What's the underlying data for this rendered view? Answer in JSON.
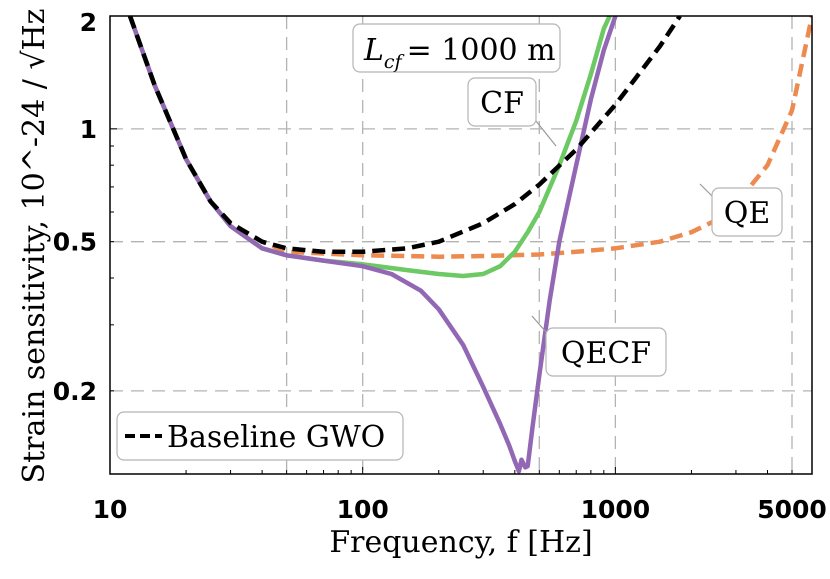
{
  "chart_data": {
    "type": "line",
    "xscale": "log",
    "yscale": "log",
    "xlim": [
      10,
      6000
    ],
    "ylim": [
      0.12,
      2
    ],
    "xlabel": "Frequency, f [Hz]",
    "ylabel": "Strain sensitivity, 10^-24 / √Hz",
    "x_ticks": [
      {
        "value": 10,
        "label": "10"
      },
      {
        "value": 100,
        "label": "100"
      },
      {
        "value": 1000,
        "label": "1000"
      },
      {
        "value": 5000,
        "label": "5000"
      }
    ],
    "y_ticks": [
      {
        "value": 0.2,
        "label": "0.2"
      },
      {
        "value": 0.5,
        "label": "0.5"
      },
      {
        "value": 1,
        "label": "1"
      },
      {
        "value": 2,
        "label": "2"
      }
    ],
    "x_grid": [
      50,
      100,
      500,
      1000,
      5000
    ],
    "y_grid": [
      0.2,
      0.5,
      1
    ],
    "grid": true,
    "legend": {
      "label": "Baseline GWO",
      "placement": "lower-left"
    },
    "title_annotation": {
      "prefix": "L",
      "subscript": "cf",
      "suffix": "= 1000 m"
    },
    "series": [
      {
        "name": "Baseline GWO",
        "color": "#000000",
        "style": "dashed",
        "x": [
          12,
          15,
          20,
          25,
          30,
          40,
          50,
          70,
          100,
          150,
          200,
          300,
          400,
          500,
          700,
          1000,
          1500,
          1800
        ],
        "y": [
          2.0,
          1.31,
          0.83,
          0.64,
          0.56,
          0.5,
          0.48,
          0.47,
          0.47,
          0.48,
          0.5,
          0.56,
          0.63,
          0.71,
          0.88,
          1.16,
          1.66,
          2.0
        ]
      },
      {
        "name": "QE",
        "color": "#ed8a4f",
        "style": "dashed",
        "x": [
          12,
          15,
          20,
          25,
          30,
          40,
          50,
          70,
          100,
          150,
          200,
          300,
          500,
          700,
          1000,
          1500,
          2000,
          2500,
          3000,
          4000,
          5000,
          6000
        ],
        "y": [
          2.0,
          1.31,
          0.83,
          0.64,
          0.56,
          0.5,
          0.47,
          0.465,
          0.46,
          0.458,
          0.456,
          0.458,
          0.462,
          0.47,
          0.48,
          0.5,
          0.53,
          0.57,
          0.63,
          0.8,
          1.12,
          2.0
        ]
      },
      {
        "name": "CF",
        "color": "#6cc964",
        "style": "solid",
        "x": [
          12,
          15,
          20,
          25,
          30,
          40,
          50,
          70,
          100,
          150,
          200,
          250,
          300,
          350,
          400,
          450,
          500,
          600,
          700,
          800,
          900,
          950
        ],
        "y": [
          2.0,
          1.31,
          0.83,
          0.64,
          0.55,
          0.48,
          0.46,
          0.445,
          0.435,
          0.42,
          0.41,
          0.405,
          0.41,
          0.43,
          0.47,
          0.53,
          0.6,
          0.8,
          1.05,
          1.4,
          1.85,
          2.0
        ]
      },
      {
        "name": "QECF",
        "color": "#9268b5",
        "style": "solid",
        "x": [
          12,
          15,
          20,
          25,
          30,
          40,
          50,
          70,
          100,
          130,
          170,
          200,
          250,
          300,
          350,
          380,
          400,
          415,
          425,
          440,
          450,
          470,
          500,
          550,
          600,
          700,
          800,
          900,
          1000
        ],
        "y": [
          2.0,
          1.31,
          0.83,
          0.64,
          0.55,
          0.48,
          0.46,
          0.445,
          0.43,
          0.41,
          0.37,
          0.33,
          0.265,
          0.205,
          0.163,
          0.143,
          0.13,
          0.122,
          0.131,
          0.125,
          0.126,
          0.16,
          0.22,
          0.35,
          0.5,
          0.8,
          1.2,
          1.62,
          2.0
        ]
      }
    ],
    "annotations": [
      {
        "text": "CF"
      },
      {
        "text": "QE"
      },
      {
        "text": "QECF"
      }
    ]
  }
}
